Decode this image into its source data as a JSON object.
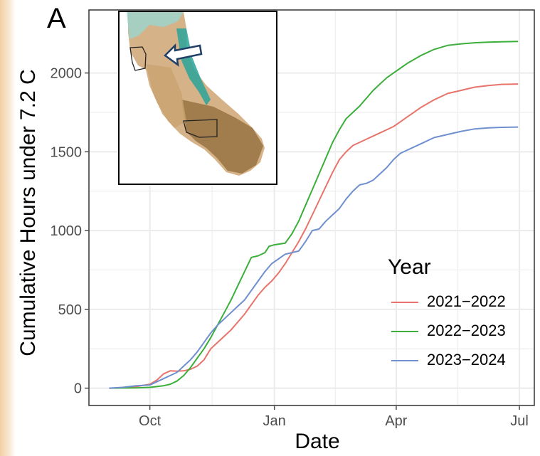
{
  "panel_label": "A",
  "chart_data": {
    "type": "line",
    "title": "",
    "xlabel": "Date",
    "ylabel": "Cumulative Hours under 7.2 C",
    "x_tick_labels": [
      "Oct",
      "Jan",
      "Apr",
      "Jul"
    ],
    "y_ticks": [
      0,
      500,
      1000,
      1500,
      2000
    ],
    "x_unit": "days since Oct 1",
    "x_ticks_days": [
      0,
      92,
      182,
      273
    ],
    "xlim_days": [
      -45,
      284
    ],
    "ylim": [
      -110,
      2400
    ],
    "grid": true,
    "legend_title": "Year",
    "legend_position": "right",
    "series": [
      {
        "name": "2021−2022",
        "color": "#e8736b",
        "points": [
          [
            -30,
            0
          ],
          [
            -20,
            3
          ],
          [
            -10,
            10
          ],
          [
            0,
            25
          ],
          [
            5,
            50
          ],
          [
            10,
            90
          ],
          [
            15,
            110
          ],
          [
            20,
            108
          ],
          [
            25,
            110
          ],
          [
            30,
            120
          ],
          [
            35,
            140
          ],
          [
            40,
            180
          ],
          [
            45,
            250
          ],
          [
            50,
            290
          ],
          [
            55,
            330
          ],
          [
            60,
            370
          ],
          [
            65,
            420
          ],
          [
            70,
            470
          ],
          [
            75,
            530
          ],
          [
            80,
            590
          ],
          [
            85,
            640
          ],
          [
            90,
            680
          ],
          [
            95,
            730
          ],
          [
            100,
            790
          ],
          [
            105,
            860
          ],
          [
            110,
            930
          ],
          [
            115,
            1010
          ],
          [
            120,
            1100
          ],
          [
            125,
            1190
          ],
          [
            130,
            1280
          ],
          [
            135,
            1370
          ],
          [
            140,
            1450
          ],
          [
            145,
            1500
          ],
          [
            150,
            1540
          ],
          [
            155,
            1560
          ],
          [
            160,
            1580
          ],
          [
            165,
            1600
          ],
          [
            170,
            1620
          ],
          [
            175,
            1640
          ],
          [
            180,
            1660
          ],
          [
            185,
            1690
          ],
          [
            190,
            1720
          ],
          [
            200,
            1780
          ],
          [
            210,
            1830
          ],
          [
            220,
            1870
          ],
          [
            230,
            1890
          ],
          [
            240,
            1910
          ],
          [
            250,
            1920
          ],
          [
            260,
            1928
          ],
          [
            272,
            1930
          ]
        ]
      },
      {
        "name": "2022−2023",
        "color": "#3cae3c",
        "points": [
          [
            -30,
            0
          ],
          [
            -20,
            1
          ],
          [
            -10,
            2
          ],
          [
            0,
            5
          ],
          [
            10,
            15
          ],
          [
            15,
            25
          ],
          [
            20,
            45
          ],
          [
            25,
            80
          ],
          [
            30,
            130
          ],
          [
            35,
            190
          ],
          [
            40,
            250
          ],
          [
            45,
            320
          ],
          [
            50,
            400
          ],
          [
            55,
            480
          ],
          [
            60,
            560
          ],
          [
            65,
            650
          ],
          [
            70,
            740
          ],
          [
            75,
            830
          ],
          [
            80,
            840
          ],
          [
            85,
            860
          ],
          [
            88,
            900
          ],
          [
            92,
            910
          ],
          [
            100,
            920
          ],
          [
            105,
            980
          ],
          [
            110,
            1060
          ],
          [
            115,
            1160
          ],
          [
            120,
            1260
          ],
          [
            125,
            1360
          ],
          [
            130,
            1460
          ],
          [
            135,
            1560
          ],
          [
            140,
            1640
          ],
          [
            145,
            1710
          ],
          [
            150,
            1750
          ],
          [
            155,
            1790
          ],
          [
            160,
            1840
          ],
          [
            165,
            1890
          ],
          [
            170,
            1930
          ],
          [
            175,
            1970
          ],
          [
            180,
            2000
          ],
          [
            185,
            2030
          ],
          [
            190,
            2060
          ],
          [
            200,
            2110
          ],
          [
            210,
            2150
          ],
          [
            220,
            2175
          ],
          [
            230,
            2185
          ],
          [
            240,
            2192
          ],
          [
            250,
            2196
          ],
          [
            260,
            2198
          ],
          [
            272,
            2200
          ]
        ]
      },
      {
        "name": "2023−2024",
        "color": "#6f8fcf",
        "points": [
          [
            -30,
            0
          ],
          [
            -20,
            5
          ],
          [
            -10,
            15
          ],
          [
            0,
            20
          ],
          [
            5,
            40
          ],
          [
            10,
            60
          ],
          [
            15,
            80
          ],
          [
            20,
            100
          ],
          [
            25,
            140
          ],
          [
            30,
            180
          ],
          [
            35,
            230
          ],
          [
            40,
            290
          ],
          [
            45,
            350
          ],
          [
            50,
            400
          ],
          [
            55,
            440
          ],
          [
            60,
            480
          ],
          [
            65,
            520
          ],
          [
            70,
            560
          ],
          [
            75,
            620
          ],
          [
            80,
            680
          ],
          [
            85,
            740
          ],
          [
            90,
            790
          ],
          [
            95,
            820
          ],
          [
            100,
            850
          ],
          [
            105,
            860
          ],
          [
            110,
            870
          ],
          [
            115,
            930
          ],
          [
            120,
            1000
          ],
          [
            125,
            1010
          ],
          [
            130,
            1060
          ],
          [
            135,
            1100
          ],
          [
            140,
            1140
          ],
          [
            145,
            1200
          ],
          [
            150,
            1250
          ],
          [
            155,
            1290
          ],
          [
            160,
            1300
          ],
          [
            165,
            1320
          ],
          [
            170,
            1360
          ],
          [
            175,
            1400
          ],
          [
            180,
            1450
          ],
          [
            185,
            1490
          ],
          [
            190,
            1510
          ],
          [
            200,
            1550
          ],
          [
            210,
            1590
          ],
          [
            220,
            1610
          ],
          [
            230,
            1630
          ],
          [
            240,
            1645
          ],
          [
            250,
            1652
          ],
          [
            260,
            1655
          ],
          [
            272,
            1657
          ]
        ]
      }
    ]
  },
  "colors": {
    "axis": "#4d4d4d",
    "grid": "#ebebeb",
    "tick_text": "#4d4d4d",
    "page_edge_tint": "#f2cfa4"
  },
  "inset_map": {
    "icon": "california-elevation-map",
    "arrow_icon": "outlined-arrow-icon",
    "palette": [
      "#c09060",
      "#d9b58a",
      "#7a5a30",
      "#2aa39a",
      "#e9dac6"
    ]
  }
}
